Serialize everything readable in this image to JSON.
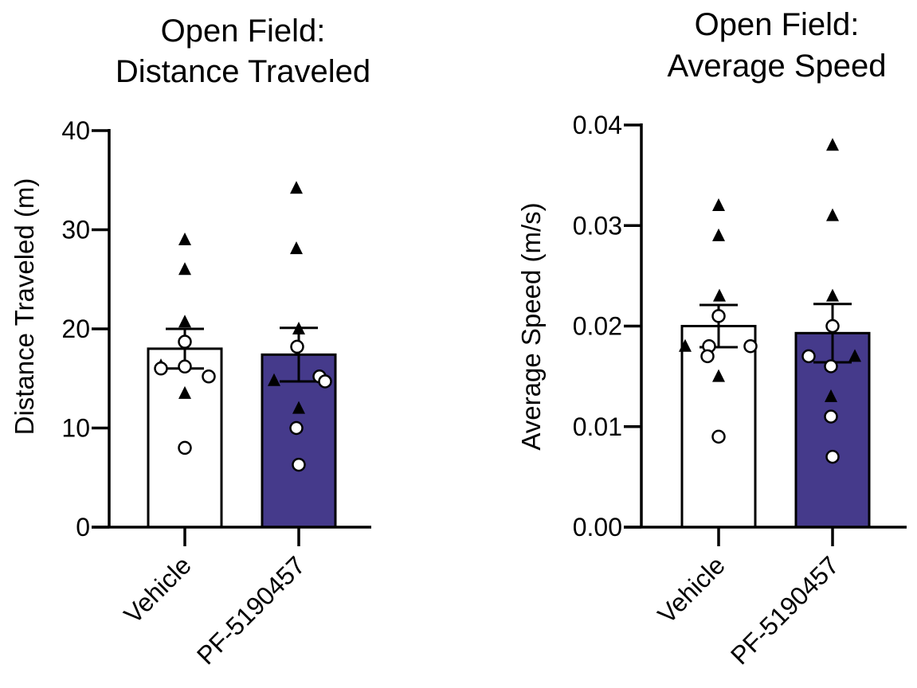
{
  "chart_data": [
    {
      "type": "bar",
      "title": [
        "Open Field:",
        "Distance Traveled"
      ],
      "ylabel": "Distance Traveled (m)",
      "ylim": [
        0,
        40
      ],
      "yticks": [
        0,
        10,
        20,
        30,
        40
      ],
      "ytick_labels": [
        "0",
        "10",
        "20",
        "30",
        "40"
      ],
      "categories": [
        "Vehicle",
        "PF-5190457"
      ],
      "bar_colors": [
        "#ffffff",
        "#453a8b"
      ],
      "values": [
        18.0,
        17.4
      ],
      "error_sem": [
        2.0,
        2.7
      ],
      "points": [
        {
          "triangles": [
            29.0,
            26.0,
            20.7,
            16.3,
            13.5
          ],
          "circles": [
            18.7,
            16.0,
            16.2,
            15.2,
            8.0
          ]
        },
        {
          "triangles": [
            34.2,
            28.1,
            20.0,
            14.8,
            12.0
          ],
          "circles": [
            18.2,
            15.2,
            14.7,
            10.0,
            6.3
          ]
        }
      ]
    },
    {
      "type": "bar",
      "title": [
        "Open Field:",
        "Average Speed"
      ],
      "ylabel": "Average Speed (m/s)",
      "ylim": [
        0,
        0.04
      ],
      "yticks": [
        0,
        0.01,
        0.02,
        0.03,
        0.04
      ],
      "ytick_labels": [
        "0.00",
        "0.01",
        "0.02",
        "0.03",
        "0.04"
      ],
      "categories": [
        "Vehicle",
        "PF-5190457"
      ],
      "bar_colors": [
        "#ffffff",
        "#453a8b"
      ],
      "values": [
        0.02,
        0.0193
      ],
      "error_sem": [
        0.0021,
        0.0029
      ],
      "points": [
        {
          "triangles": [
            0.032,
            0.029,
            0.023,
            0.018,
            0.015
          ],
          "circles": [
            0.021,
            0.018,
            0.018,
            0.017,
            0.009
          ]
        },
        {
          "triangles": [
            0.038,
            0.031,
            0.023,
            0.017,
            0.013
          ],
          "circles": [
            0.02,
            0.017,
            0.016,
            0.011,
            0.007
          ]
        }
      ]
    }
  ]
}
